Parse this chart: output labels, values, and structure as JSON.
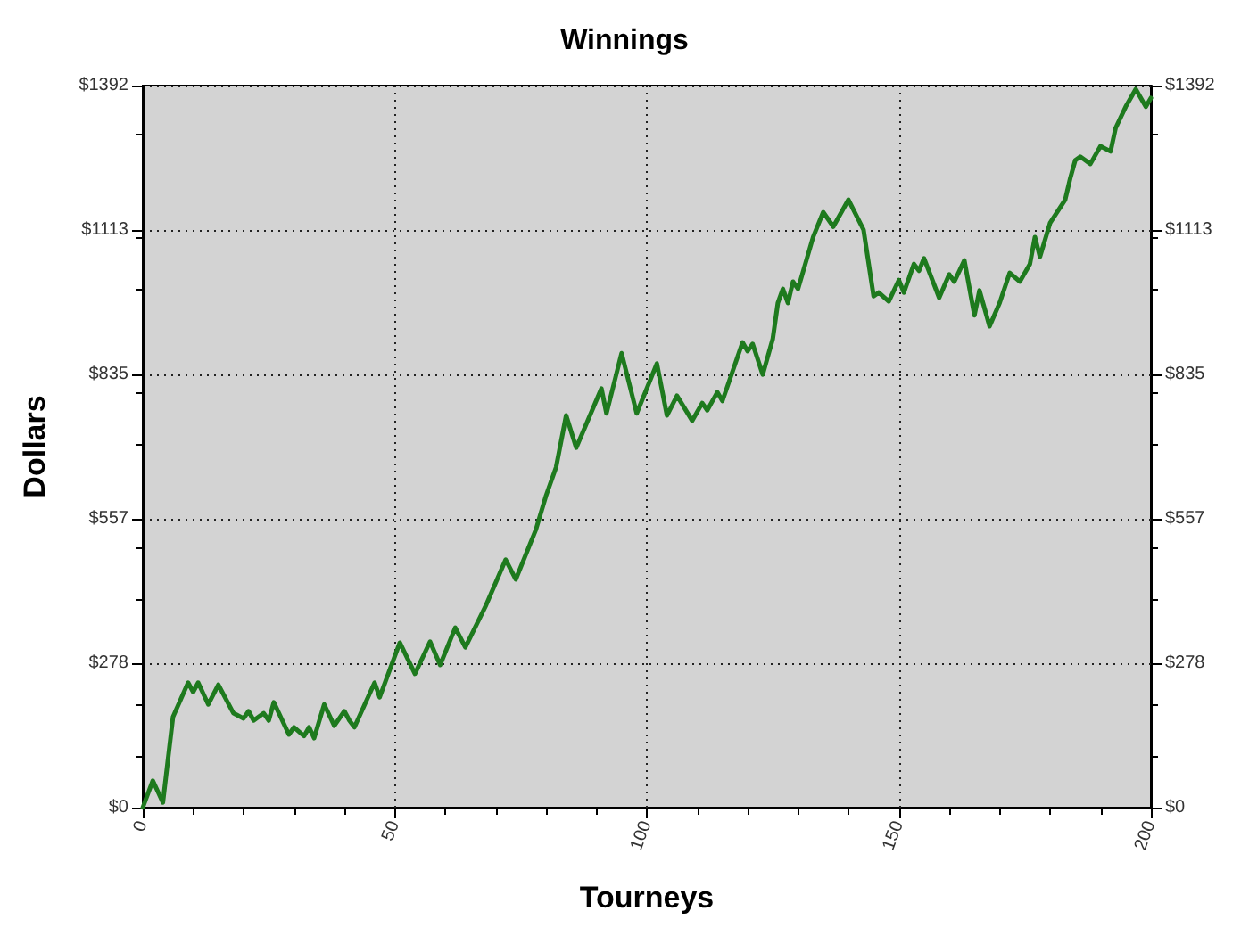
{
  "chart_data": {
    "type": "line",
    "title": "Winnings",
    "xlabel": "Tourneys",
    "ylabel": "Dollars",
    "xlim": [
      0,
      200
    ],
    "xticks": [
      0,
      50,
      100,
      150,
      200
    ],
    "ylim": [
      0,
      1392
    ],
    "yticks": [
      {
        "value": 0,
        "label": "$0"
      },
      {
        "value": 278,
        "label": "$278"
      },
      {
        "value": 557,
        "label": "$557"
      },
      {
        "value": 835,
        "label": "$835"
      },
      {
        "value": 1113,
        "label": "$1113"
      },
      {
        "value": 1392,
        "label": "$1392"
      }
    ],
    "y2lim": [
      0,
      1392
    ],
    "y2ticks": [
      {
        "value": 0,
        "label": "$0"
      },
      {
        "value": 278,
        "label": "$278"
      },
      {
        "value": 557,
        "label": "$557"
      },
      {
        "value": 835,
        "label": "$835"
      },
      {
        "value": 1113,
        "label": "$1113"
      },
      {
        "value": 1392,
        "label": "$1392"
      }
    ],
    "grid": true,
    "marker": "none",
    "line_style": "solid",
    "series": [
      {
        "color": "#1e7a1e",
        "x": [
          0,
          2,
          4,
          6,
          9,
          10,
          11,
          13,
          15,
          18,
          20,
          21,
          22,
          24,
          25,
          26,
          29,
          30,
          32,
          33,
          34,
          36,
          38,
          40,
          41,
          42,
          46,
          47,
          51,
          54,
          57,
          59,
          62,
          64,
          68,
          72,
          74,
          78,
          80,
          82,
          84,
          86,
          91,
          92,
          95,
          98,
          102,
          104,
          106,
          109,
          111,
          112,
          114,
          115,
          119,
          120,
          121,
          123,
          125,
          126,
          127,
          128,
          129,
          130,
          133,
          135,
          137,
          140,
          143,
          145,
          146,
          148,
          150,
          151,
          153,
          154,
          155,
          158,
          160,
          161,
          163,
          165,
          166,
          168,
          170,
          172,
          174,
          176,
          177,
          178,
          180,
          183,
          184,
          185,
          186,
          188,
          190,
          192,
          193,
          195,
          197,
          199,
          200
        ],
        "values": [
          0,
          52,
          10,
          175,
          241,
          223,
          241,
          199,
          237,
          182,
          172,
          186,
          168,
          182,
          168,
          203,
          141,
          155,
          138,
          155,
          134,
          199,
          158,
          186,
          168,
          155,
          241,
          213,
          318,
          258,
          320,
          275,
          347,
          309,
          388,
          478,
          440,
          536,
          601,
          656,
          756,
          694,
          808,
          760,
          876,
          760,
          856,
          756,
          794,
          746,
          780,
          766,
          801,
          784,
          897,
          880,
          894,
          835,
          904,
          973,
          1000,
          973,
          1014,
          1000,
          1100,
          1148,
          1120,
          1172,
          1114,
          986,
          993,
          976,
          1017,
          993,
          1048,
          1035,
          1059,
          983,
          1028,
          1014,
          1055,
          949,
          997,
          928,
          973,
          1031,
          1014,
          1048,
          1100,
          1062,
          1127,
          1172,
          1213,
          1248,
          1255,
          1241,
          1275,
          1265,
          1310,
          1351,
          1385,
          1351,
          1368
        ]
      }
    ]
  }
}
